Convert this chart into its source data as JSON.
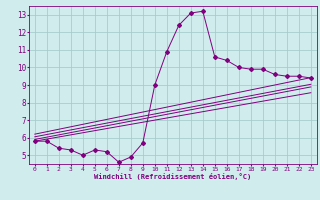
{
  "xlabel": "Windchill (Refroidissement éolien,°C)",
  "x_data": [
    0,
    1,
    2,
    3,
    4,
    5,
    6,
    7,
    8,
    9,
    10,
    11,
    12,
    13,
    14,
    15,
    16,
    17,
    18,
    19,
    20,
    21,
    22,
    23
  ],
  "y_main": [
    5.8,
    5.8,
    5.4,
    5.3,
    5.0,
    5.3,
    5.2,
    4.6,
    4.9,
    5.7,
    9.0,
    10.9,
    12.4,
    13.1,
    13.2,
    10.6,
    10.4,
    10.0,
    9.9,
    9.9,
    9.6,
    9.5,
    9.5,
    9.4
  ],
  "y_line1": [
    5.8,
    5.92,
    6.04,
    6.16,
    6.28,
    6.4,
    6.52,
    6.64,
    6.76,
    6.88,
    7.0,
    7.12,
    7.24,
    7.36,
    7.48,
    7.6,
    7.72,
    7.84,
    7.96,
    8.08,
    8.2,
    8.32,
    8.44,
    8.56
  ],
  "y_line2": [
    5.9,
    6.03,
    6.16,
    6.29,
    6.42,
    6.55,
    6.68,
    6.81,
    6.94,
    7.07,
    7.2,
    7.33,
    7.46,
    7.59,
    7.72,
    7.85,
    7.98,
    8.11,
    8.24,
    8.37,
    8.5,
    8.63,
    8.76,
    8.89
  ],
  "y_line3": [
    6.05,
    6.18,
    6.31,
    6.44,
    6.57,
    6.7,
    6.83,
    6.96,
    7.09,
    7.22,
    7.35,
    7.48,
    7.61,
    7.74,
    7.87,
    8.0,
    8.13,
    8.26,
    8.39,
    8.52,
    8.65,
    8.78,
    8.91,
    9.04
  ],
  "y_line4": [
    6.2,
    6.34,
    6.48,
    6.62,
    6.76,
    6.9,
    7.04,
    7.18,
    7.32,
    7.46,
    7.6,
    7.74,
    7.88,
    8.02,
    8.16,
    8.3,
    8.44,
    8.58,
    8.72,
    8.86,
    9.0,
    9.14,
    9.28,
    9.42
  ],
  "line_color": "#800080",
  "bg_color": "#d0ecec",
  "grid_color": "#a8cccc",
  "ylim": [
    4.5,
    13.5
  ],
  "xlim": [
    -0.5,
    23.5
  ],
  "yticks": [
    5,
    6,
    7,
    8,
    9,
    10,
    11,
    12,
    13
  ],
  "xticks": [
    0,
    1,
    2,
    3,
    4,
    5,
    6,
    7,
    8,
    9,
    10,
    11,
    12,
    13,
    14,
    15,
    16,
    17,
    18,
    19,
    20,
    21,
    22,
    23
  ]
}
